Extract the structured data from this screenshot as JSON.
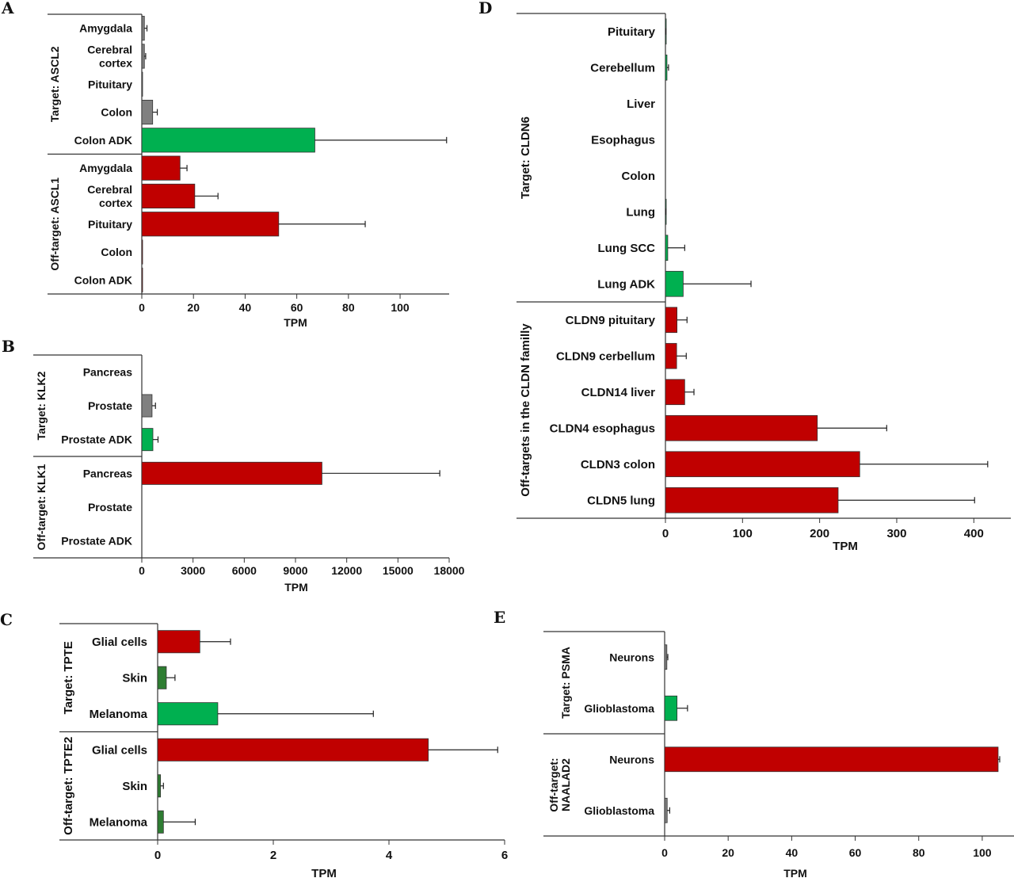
{
  "colors": {
    "grey": "#808080",
    "green": "#00b050",
    "dark_green": "#2e7d32",
    "red": "#c00000"
  },
  "chart_data": [
    {
      "panel": "A",
      "type": "bar",
      "orientation": "horizontal",
      "xlabel": "TPM",
      "xlim": [
        0,
        119
      ],
      "xticks": [
        0,
        20,
        40,
        60,
        80,
        100
      ],
      "grid": false,
      "groups": [
        {
          "label": "Target: ASCL2",
          "bars": [
            {
              "label": [
                "Amygdala"
              ],
              "value": 1,
              "error_to": 2,
              "color": "#808080"
            },
            {
              "label": [
                "Cerebral",
                "cortex"
              ],
              "value": 1,
              "error_to": 1.5,
              "color": "#808080"
            },
            {
              "label": [
                "Pituitary"
              ],
              "value": 0.2,
              "error_to": 0.2,
              "color": "#808080"
            },
            {
              "label": [
                "Colon"
              ],
              "value": 4.2,
              "error_to": 6,
              "color": "#808080"
            },
            {
              "label": [
                "Colon ADK"
              ],
              "value": 67,
              "error_to": 118,
              "color": "#00b050"
            }
          ]
        },
        {
          "label": "Off-target: ASCL1",
          "bars": [
            {
              "label": [
                "Amygdala"
              ],
              "value": 14.8,
              "error_to": 17.5,
              "color": "#c00000"
            },
            {
              "label": [
                "Cerebral",
                "cortex"
              ],
              "value": 20.5,
              "error_to": 29.5,
              "color": "#c00000"
            },
            {
              "label": [
                "Pituitary"
              ],
              "value": 53,
              "error_to": 86.5,
              "color": "#c00000"
            },
            {
              "label": [
                "Colon"
              ],
              "value": 0.1,
              "error_to": 0.1,
              "color": "#c00000"
            },
            {
              "label": [
                "Colon ADK"
              ],
              "value": 0.1,
              "error_to": 0.1,
              "color": "#c00000"
            }
          ]
        }
      ]
    },
    {
      "panel": "B",
      "type": "bar",
      "orientation": "horizontal",
      "xlabel": "TPM",
      "xlim": [
        0,
        18000
      ],
      "xticks": [
        0,
        3000,
        6000,
        9000,
        12000,
        15000,
        18000
      ],
      "grid": false,
      "groups": [
        {
          "label": "Target: KLK2",
          "bars": [
            {
              "label": [
                "Pancreas"
              ],
              "value": 0,
              "error_to": 0,
              "color": "#808080"
            },
            {
              "label": [
                "Prostate"
              ],
              "value": 600,
              "error_to": 800,
              "color": "#808080"
            },
            {
              "label": [
                "Prostate ADK"
              ],
              "value": 650,
              "error_to": 950,
              "color": "#00b050"
            }
          ]
        },
        {
          "label": "Off-target: KLK1",
          "bars": [
            {
              "label": [
                "Pancreas"
              ],
              "value": 10550,
              "error_to": 17450,
              "color": "#c00000"
            },
            {
              "label": [
                "Prostate"
              ],
              "value": 0,
              "error_to": 0,
              "color": "#c00000"
            },
            {
              "label": [
                "Prostate ADK"
              ],
              "value": 0,
              "error_to": 0,
              "color": "#c00000"
            }
          ]
        }
      ]
    },
    {
      "panel": "C",
      "type": "bar",
      "orientation": "horizontal",
      "xlabel": "TPM",
      "xlim": [
        0,
        6
      ],
      "xticks": [
        0,
        2,
        4,
        6
      ],
      "grid": false,
      "groups": [
        {
          "label": "Target: TPTE",
          "bars": [
            {
              "label": [
                "Glial cells"
              ],
              "value": 0.73,
              "error_to": 1.26,
              "color": "#c00000"
            },
            {
              "label": [
                "Skin"
              ],
              "value": 0.15,
              "error_to": 0.3,
              "color": "#2e7d32"
            },
            {
              "label": [
                "Melanoma"
              ],
              "value": 1.04,
              "error_to": 3.73,
              "color": "#00b050"
            }
          ]
        },
        {
          "label": "Off-target: TPTE2",
          "bars": [
            {
              "label": [
                "Glial cells"
              ],
              "value": 4.68,
              "error_to": 5.88,
              "color": "#c00000"
            },
            {
              "label": [
                "Skin"
              ],
              "value": 0.05,
              "error_to": 0.1,
              "color": "#2e7d32"
            },
            {
              "label": [
                "Melanoma"
              ],
              "value": 0.1,
              "error_to": 0.65,
              "color": "#2e7d32"
            }
          ]
        }
      ]
    },
    {
      "panel": "D",
      "type": "bar",
      "orientation": "horizontal",
      "xlabel": "TPM",
      "xlim": [
        0,
        448
      ],
      "xticks": [
        0,
        100,
        200,
        300,
        400
      ],
      "grid": false,
      "groups": [
        {
          "label": "Target: CLDN6",
          "bars": [
            {
              "label": [
                "Pituitary"
              ],
              "value": 0.3,
              "error_to": 0.5,
              "color": "#00b050"
            },
            {
              "label": [
                "Cerebellum"
              ],
              "value": 2,
              "error_to": 4,
              "color": "#00b050"
            },
            {
              "label": [
                "Liver"
              ],
              "value": 0,
              "error_to": 0,
              "color": "#00b050"
            },
            {
              "label": [
                "Esophagus"
              ],
              "value": 0,
              "error_to": 0,
              "color": "#00b050"
            },
            {
              "label": [
                "Colon"
              ],
              "value": 0,
              "error_to": 0,
              "color": "#00b050"
            },
            {
              "label": [
                "Lung"
              ],
              "value": 0.3,
              "error_to": 0.5,
              "color": "#00b050"
            },
            {
              "label": [
                "Lung SCC"
              ],
              "value": 3,
              "error_to": 25,
              "color": "#00b050"
            },
            {
              "label": [
                "Lung ADK"
              ],
              "value": 23,
              "error_to": 111,
              "color": "#00b050"
            }
          ]
        },
        {
          "label": "Off-targets in the CLDN familly",
          "bars": [
            {
              "label": [
                "CLDN9  pituitary"
              ],
              "value": 15,
              "error_to": 28,
              "color": "#c00000"
            },
            {
              "label": [
                "CLDN9 cerbellum"
              ],
              "value": 14.5,
              "error_to": 27,
              "color": "#c00000"
            },
            {
              "label": [
                "CLDN14 liver"
              ],
              "value": 25,
              "error_to": 37,
              "color": "#c00000"
            },
            {
              "label": [
                "CLDN4 esophagus"
              ],
              "value": 197,
              "error_to": 287,
              "color": "#c00000"
            },
            {
              "label": [
                "CLDN3 colon"
              ],
              "value": 252,
              "error_to": 418,
              "color": "#c00000"
            },
            {
              "label": [
                "CLDN5 lung"
              ],
              "value": 224,
              "error_to": 401,
              "color": "#c00000"
            }
          ]
        }
      ]
    },
    {
      "panel": "E",
      "type": "bar",
      "orientation": "horizontal",
      "xlabel": "TPM",
      "xlim": [
        0,
        110
      ],
      "xticks": [
        0,
        20,
        40,
        60,
        80,
        100
      ],
      "grid": false,
      "groups": [
        {
          "label": [
            "Target: PSMA"
          ],
          "bars": [
            {
              "label": [
                "Neurons"
              ],
              "value": 0.7,
              "error_to": 1,
              "color": "#808080"
            },
            {
              "label": [
                "Glioblastoma"
              ],
              "value": 3.9,
              "error_to": 7.2,
              "color": "#00b050"
            }
          ]
        },
        {
          "label": [
            "Off-target:",
            "NAALAD2"
          ],
          "bars": [
            {
              "label": [
                "Neurons"
              ],
              "value": 105,
              "error_to": 105.5,
              "color": "#c00000"
            },
            {
              "label": [
                "Glioblastoma"
              ],
              "value": 0.8,
              "error_to": 1.6,
              "color": "#808080"
            }
          ]
        }
      ]
    }
  ]
}
